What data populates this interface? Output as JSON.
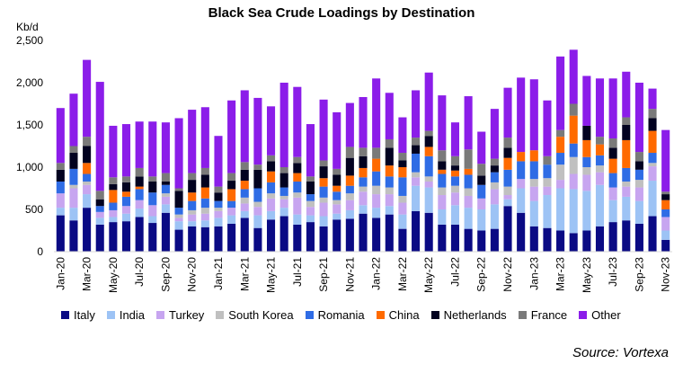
{
  "chart_data": {
    "type": "bar",
    "stacked": true,
    "title": "Black Sea Crude Loadings by Destination",
    "ylabel": "Kb/d",
    "ylim": [
      0,
      2500
    ],
    "yticks": [
      "0",
      "500",
      "1,000",
      "1,500",
      "2,000",
      "2,500"
    ],
    "source": "Source: Vortexa",
    "legend_position": "bottom",
    "x_labels": [
      "Jan-20",
      "Mar-20",
      "May-20",
      "Jul-20",
      "Sep-20",
      "Nov-20",
      "Jan-21",
      "Mar-21",
      "May-21",
      "Jul-21",
      "Sep-21",
      "Nov-21",
      "Jan-22",
      "Mar-22",
      "May-22",
      "Jul-22",
      "Sep-22",
      "Nov-22",
      "Jan-23",
      "Mar-23",
      "May-23",
      "Jul-23",
      "Sep-23",
      "Nov-23"
    ],
    "categories": [
      "Jan-20",
      "Feb-20",
      "Mar-20",
      "Apr-20",
      "May-20",
      "Jun-20",
      "Jul-20",
      "Aug-20",
      "Sep-20",
      "Oct-20",
      "Nov-20",
      "Dec-20",
      "Jan-21",
      "Feb-21",
      "Mar-21",
      "Apr-21",
      "May-21",
      "Jun-21",
      "Jul-21",
      "Aug-21",
      "Sep-21",
      "Oct-21",
      "Nov-21",
      "Dec-21",
      "Jan-22",
      "Feb-22",
      "Mar-22",
      "Apr-22",
      "May-22",
      "Jun-22",
      "Jul-22",
      "Aug-22",
      "Sep-22",
      "Oct-22",
      "Nov-22",
      "Dec-22",
      "Jan-23",
      "Feb-23",
      "Mar-23",
      "Apr-23",
      "May-23",
      "Jun-23",
      "Jul-23",
      "Aug-23",
      "Sep-23",
      "Oct-23",
      "Nov-23"
    ],
    "series": [
      {
        "name": "Italy",
        "color": "#0a0a84",
        "values": [
          430,
          370,
          520,
          320,
          350,
          360,
          410,
          340,
          460,
          260,
          300,
          290,
          300,
          330,
          400,
          280,
          380,
          420,
          320,
          350,
          300,
          380,
          390,
          450,
          400,
          440,
          270,
          480,
          460,
          320,
          320,
          270,
          250,
          270,
          540,
          460,
          300,
          280,
          250,
          220,
          250,
          300,
          350,
          370,
          330,
          420,
          140
        ]
      },
      {
        "name": "India",
        "color": "#9dc3f5",
        "values": [
          90,
          150,
          160,
          80,
          60,
          90,
          100,
          80,
          100,
          100,
          60,
          80,
          100,
          100,
          80,
          150,
          100,
          100,
          120,
          80,
          120,
          70,
          100,
          100,
          120,
          100,
          170,
          300,
          300,
          180,
          230,
          250,
          250,
          290,
          80,
          290,
          300,
          390,
          500,
          520,
          470,
          490,
          260,
          280,
          270,
          420,
          110
        ]
      },
      {
        "name": "Turkey",
        "color": "#c7a5f0",
        "values": [
          170,
          230,
          110,
          70,
          80,
          90,
          100,
          130,
          90,
          40,
          80,
          80,
          80,
          90,
          90,
          100,
          150,
          100,
          200,
          100,
          160,
          110,
          120,
          160,
          160,
          140,
          140,
          100,
          70,
          170,
          150,
          140,
          130,
          180,
          50,
          110,
          170,
          100,
          100,
          180,
          190,
          150,
          150,
          120,
          160,
          170,
          160
        ]
      },
      {
        "name": "South Korea",
        "color": "#c0c0c0",
        "values": [
          0,
          40,
          40,
          0,
          0,
          0,
          0,
          0,
          40,
          40,
          50,
          70,
          40,
          0,
          70,
          60,
          60,
          40,
          60,
          70,
          60,
          50,
          80,
          60,
          100,
          80,
          80,
          60,
          60,
          90,
          80,
          90,
          0,
          80,
          100,
          0,
          90,
          100,
          180,
          200,
          90,
          80,
          0,
          60,
          90,
          40,
          0
        ]
      },
      {
        "name": "Romania",
        "color": "#2f6ce5",
        "values": [
          140,
          190,
          90,
          70,
          90,
          110,
          130,
          150,
          100,
          80,
          110,
          110,
          80,
          80,
          100,
          160,
          130,
          100,
          130,
          80,
          130,
          100,
          90,
          110,
          170,
          130,
          220,
          220,
          240,
          160,
          110,
          160,
          160,
          120,
          200,
          210,
          210,
          160,
          140,
          160,
          120,
          120,
          170,
          160,
          120,
          120,
          90
        ]
      },
      {
        "name": "China",
        "color": "#ff6a00",
        "values": [
          0,
          0,
          130,
          0,
          150,
          60,
          30,
          0,
          0,
          0,
          100,
          130,
          0,
          140,
          100,
          0,
          130,
          0,
          100,
          0,
          100,
          70,
          120,
          110,
          150,
          130,
          120,
          0,
          110,
          50,
          70,
          70,
          0,
          0,
          140,
          110,
          130,
          0,
          190,
          330,
          200,
          130,
          170,
          330,
          0,
          260,
          110
        ]
      },
      {
        "name": "Netherlands",
        "color": "#020220",
        "values": [
          140,
          190,
          200,
          80,
          70,
          110,
          120,
          130,
          40,
          200,
          150,
          150,
          100,
          100,
          130,
          220,
          120,
          170,
          120,
          150,
          140,
          130,
          210,
          140,
          0,
          210,
          80,
          100,
          130,
          100,
          60,
          0,
          110,
          80,
          120,
          0,
          0,
          0,
          0,
          0,
          170,
          0,
          130,
          180,
          100,
          150,
          70
        ]
      },
      {
        "name": "France",
        "color": "#7a7a7a",
        "values": [
          80,
          80,
          110,
          100,
          80,
          70,
          100,
          60,
          100,
          30,
          80,
          80,
          70,
          90,
          90,
          60,
          70,
          70,
          70,
          60,
          70,
          70,
          130,
          100,
          130,
          100,
          90,
          90,
          60,
          130,
          110,
          230,
          140,
          80,
          120,
          0,
          0,
          100,
          80,
          140,
          0,
          90,
          110,
          90,
          110,
          110,
          30
        ]
      },
      {
        "name": "Other",
        "color": "#8b1de9",
        "values": [
          650,
          620,
          910,
          1290,
          610,
          620,
          550,
          650,
          600,
          830,
          750,
          720,
          600,
          860,
          850,
          790,
          580,
          1000,
          830,
          620,
          720,
          670,
          520,
          600,
          820,
          550,
          420,
          560,
          690,
          650,
          400,
          630,
          380,
          590,
          590,
          880,
          840,
          660,
          870,
          640,
          590,
          690,
          710,
          540,
          820,
          240,
          730
        ]
      }
    ]
  }
}
